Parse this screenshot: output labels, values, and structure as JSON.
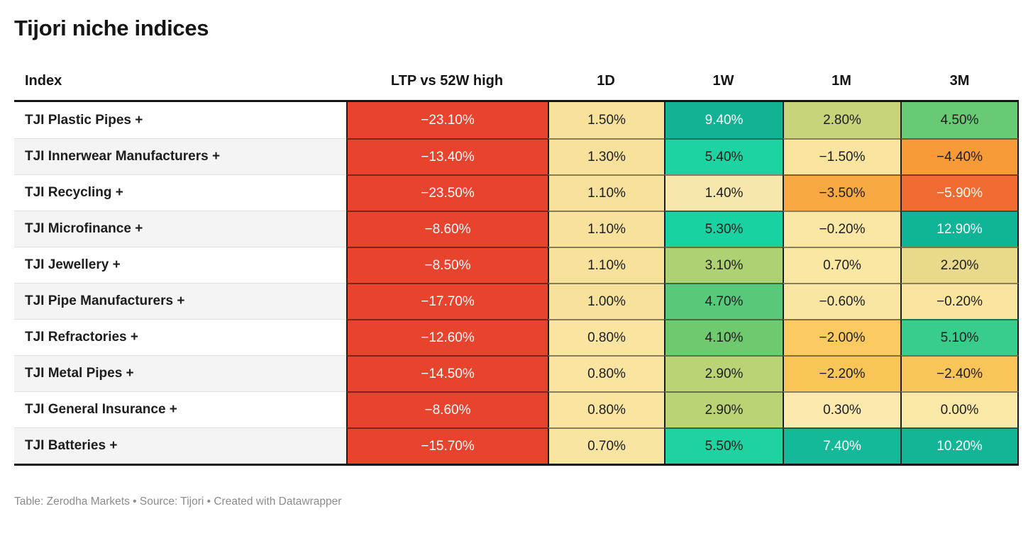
{
  "title": "Tijori niche indices",
  "footer_text": "Table: Zerodha Markets • Source: Tijori • Created with Datawrapper",
  "table": {
    "columns": [
      "Index",
      "LTP vs 52W high",
      "1D",
      "1W",
      "1M",
      "3M"
    ],
    "rows": [
      {
        "name": "TJI Plastic Pipes +",
        "cells": [
          {
            "text": "−23.10%",
            "bg": "#e8432d",
            "fg": "#ffffff"
          },
          {
            "text": "1.50%",
            "bg": "#f8e29b",
            "fg": "#1d1d1d"
          },
          {
            "text": "9.40%",
            "bg": "#14b295",
            "fg": "#ffffff"
          },
          {
            "text": "2.80%",
            "bg": "#c9d47a",
            "fg": "#1d1d1d"
          },
          {
            "text": "4.50%",
            "bg": "#68ca75",
            "fg": "#1d1d1d"
          }
        ]
      },
      {
        "name": "TJI Innerwear Manufacturers +",
        "cells": [
          {
            "text": "−13.40%",
            "bg": "#e8432d",
            "fg": "#ffffff"
          },
          {
            "text": "1.30%",
            "bg": "#f8e29b",
            "fg": "#1d1d1d"
          },
          {
            "text": "5.40%",
            "bg": "#1dd3a2",
            "fg": "#1d1d1d"
          },
          {
            "text": "−1.50%",
            "bg": "#fae5a0",
            "fg": "#1d1d1d"
          },
          {
            "text": "−4.40%",
            "bg": "#f79b38",
            "fg": "#1d1d1d"
          }
        ]
      },
      {
        "name": "TJI Recycling +",
        "cells": [
          {
            "text": "−23.50%",
            "bg": "#e8432d",
            "fg": "#ffffff"
          },
          {
            "text": "1.10%",
            "bg": "#f8e29b",
            "fg": "#1d1d1d"
          },
          {
            "text": "1.40%",
            "bg": "#f8e7ac",
            "fg": "#1d1d1d"
          },
          {
            "text": "−3.50%",
            "bg": "#f8a944",
            "fg": "#1d1d1d"
          },
          {
            "text": "−5.90%",
            "bg": "#f06b31",
            "fg": "#ffffff"
          }
        ]
      },
      {
        "name": "TJI Microfinance +",
        "cells": [
          {
            "text": "−8.60%",
            "bg": "#e8432d",
            "fg": "#ffffff"
          },
          {
            "text": "1.10%",
            "bg": "#f8e29b",
            "fg": "#1d1d1d"
          },
          {
            "text": "5.30%",
            "bg": "#19d2a1",
            "fg": "#1d1d1d"
          },
          {
            "text": "−0.20%",
            "bg": "#fae7a6",
            "fg": "#1d1d1d"
          },
          {
            "text": "12.90%",
            "bg": "#10b496",
            "fg": "#ffffff"
          }
        ]
      },
      {
        "name": "TJI Jewellery +",
        "cells": [
          {
            "text": "−8.50%",
            "bg": "#e8432d",
            "fg": "#ffffff"
          },
          {
            "text": "1.10%",
            "bg": "#f8e29b",
            "fg": "#1d1d1d"
          },
          {
            "text": "3.10%",
            "bg": "#aed174",
            "fg": "#1d1d1d"
          },
          {
            "text": "0.70%",
            "bg": "#fae7a4",
            "fg": "#1d1d1d"
          },
          {
            "text": "2.20%",
            "bg": "#e9d98b",
            "fg": "#1d1d1d"
          }
        ]
      },
      {
        "name": "TJI Pipe Manufacturers +",
        "cells": [
          {
            "text": "−17.70%",
            "bg": "#e8432d",
            "fg": "#ffffff"
          },
          {
            "text": "1.00%",
            "bg": "#f8e29b",
            "fg": "#1d1d1d"
          },
          {
            "text": "4.70%",
            "bg": "#58c87b",
            "fg": "#1d1d1d"
          },
          {
            "text": "−0.60%",
            "bg": "#fae6a3",
            "fg": "#1d1d1d"
          },
          {
            "text": "−0.20%",
            "bg": "#f9e5a0",
            "fg": "#1d1d1d"
          }
        ]
      },
      {
        "name": "TJI Refractories +",
        "cells": [
          {
            "text": "−12.60%",
            "bg": "#e8432d",
            "fg": "#ffffff"
          },
          {
            "text": "0.80%",
            "bg": "#f9e4a0",
            "fg": "#1d1d1d"
          },
          {
            "text": "4.10%",
            "bg": "#6fc96f",
            "fg": "#1d1d1d"
          },
          {
            "text": "−2.00%",
            "bg": "#fbca60",
            "fg": "#1d1d1d"
          },
          {
            "text": "5.10%",
            "bg": "#38cc8d",
            "fg": "#1d1d1d"
          }
        ]
      },
      {
        "name": "TJI Metal Pipes +",
        "cells": [
          {
            "text": "−14.50%",
            "bg": "#e8432d",
            "fg": "#ffffff"
          },
          {
            "text": "0.80%",
            "bg": "#f9e4a0",
            "fg": "#1d1d1d"
          },
          {
            "text": "2.90%",
            "bg": "#b9d375",
            "fg": "#1d1d1d"
          },
          {
            "text": "−2.20%",
            "bg": "#f9c557",
            "fg": "#1d1d1d"
          },
          {
            "text": "−2.40%",
            "bg": "#f9c458",
            "fg": "#1d1d1d"
          }
        ]
      },
      {
        "name": "TJI General Insurance +",
        "cells": [
          {
            "text": "−8.60%",
            "bg": "#e8432d",
            "fg": "#ffffff"
          },
          {
            "text": "0.80%",
            "bg": "#f9e4a0",
            "fg": "#1d1d1d"
          },
          {
            "text": "2.90%",
            "bg": "#b9d375",
            "fg": "#1d1d1d"
          },
          {
            "text": "0.30%",
            "bg": "#fbe9ad",
            "fg": "#1d1d1d"
          },
          {
            "text": "0.00%",
            "bg": "#fae8a7",
            "fg": "#1d1d1d"
          }
        ]
      },
      {
        "name": "TJI Batteries +",
        "cells": [
          {
            "text": "−15.70%",
            "bg": "#e8432d",
            "fg": "#ffffff"
          },
          {
            "text": "0.70%",
            "bg": "#f9e5a2",
            "fg": "#1d1d1d"
          },
          {
            "text": "5.50%",
            "bg": "#1ed3a0",
            "fg": "#1d1d1d"
          },
          {
            "text": "7.40%",
            "bg": "#14b99a",
            "fg": "#ffffff"
          },
          {
            "text": "10.20%",
            "bg": "#12b697",
            "fg": "#ffffff"
          }
        ]
      }
    ]
  },
  "colors": {
    "negative_strong": "#e8432d",
    "negative_orange": "#f79b38",
    "neutral_yellow": "#f8e29b",
    "positive_green": "#58c87b",
    "positive_teal": "#14b295",
    "header_rule": "#151515"
  },
  "chart_data": {
    "type": "table",
    "title": "Tijori niche indices",
    "columns": [
      "Index",
      "LTP vs 52W high",
      "1D",
      "1W",
      "1M",
      "3M"
    ],
    "rows": [
      [
        "TJI Plastic Pipes +",
        -23.1,
        1.5,
        9.4,
        2.8,
        4.5
      ],
      [
        "TJI Innerwear Manufacturers +",
        -13.4,
        1.3,
        5.4,
        -1.5,
        -4.4
      ],
      [
        "TJI Recycling +",
        -23.5,
        1.1,
        1.4,
        -3.5,
        -5.9
      ],
      [
        "TJI Microfinance +",
        -8.6,
        1.1,
        5.3,
        -0.2,
        12.9
      ],
      [
        "TJI Jewellery +",
        -8.5,
        1.1,
        3.1,
        0.7,
        2.2
      ],
      [
        "TJI Pipe Manufacturers +",
        -17.7,
        1.0,
        4.7,
        -0.6,
        -0.2
      ],
      [
        "TJI Refractories +",
        -12.6,
        0.8,
        4.1,
        -2.0,
        5.1
      ],
      [
        "TJI Metal Pipes +",
        -14.5,
        0.8,
        2.9,
        -2.2,
        -2.4
      ],
      [
        "TJI General Insurance +",
        -8.6,
        0.8,
        2.9,
        0.3,
        0.0
      ],
      [
        "TJI Batteries +",
        -15.7,
        0.7,
        5.5,
        7.4,
        10.2
      ]
    ],
    "units": "percent",
    "notes": "Cell backgrounds form a red-yellow-green heatmap; footer credits table to Zerodha Markets, source Tijori, created with Datawrapper"
  }
}
